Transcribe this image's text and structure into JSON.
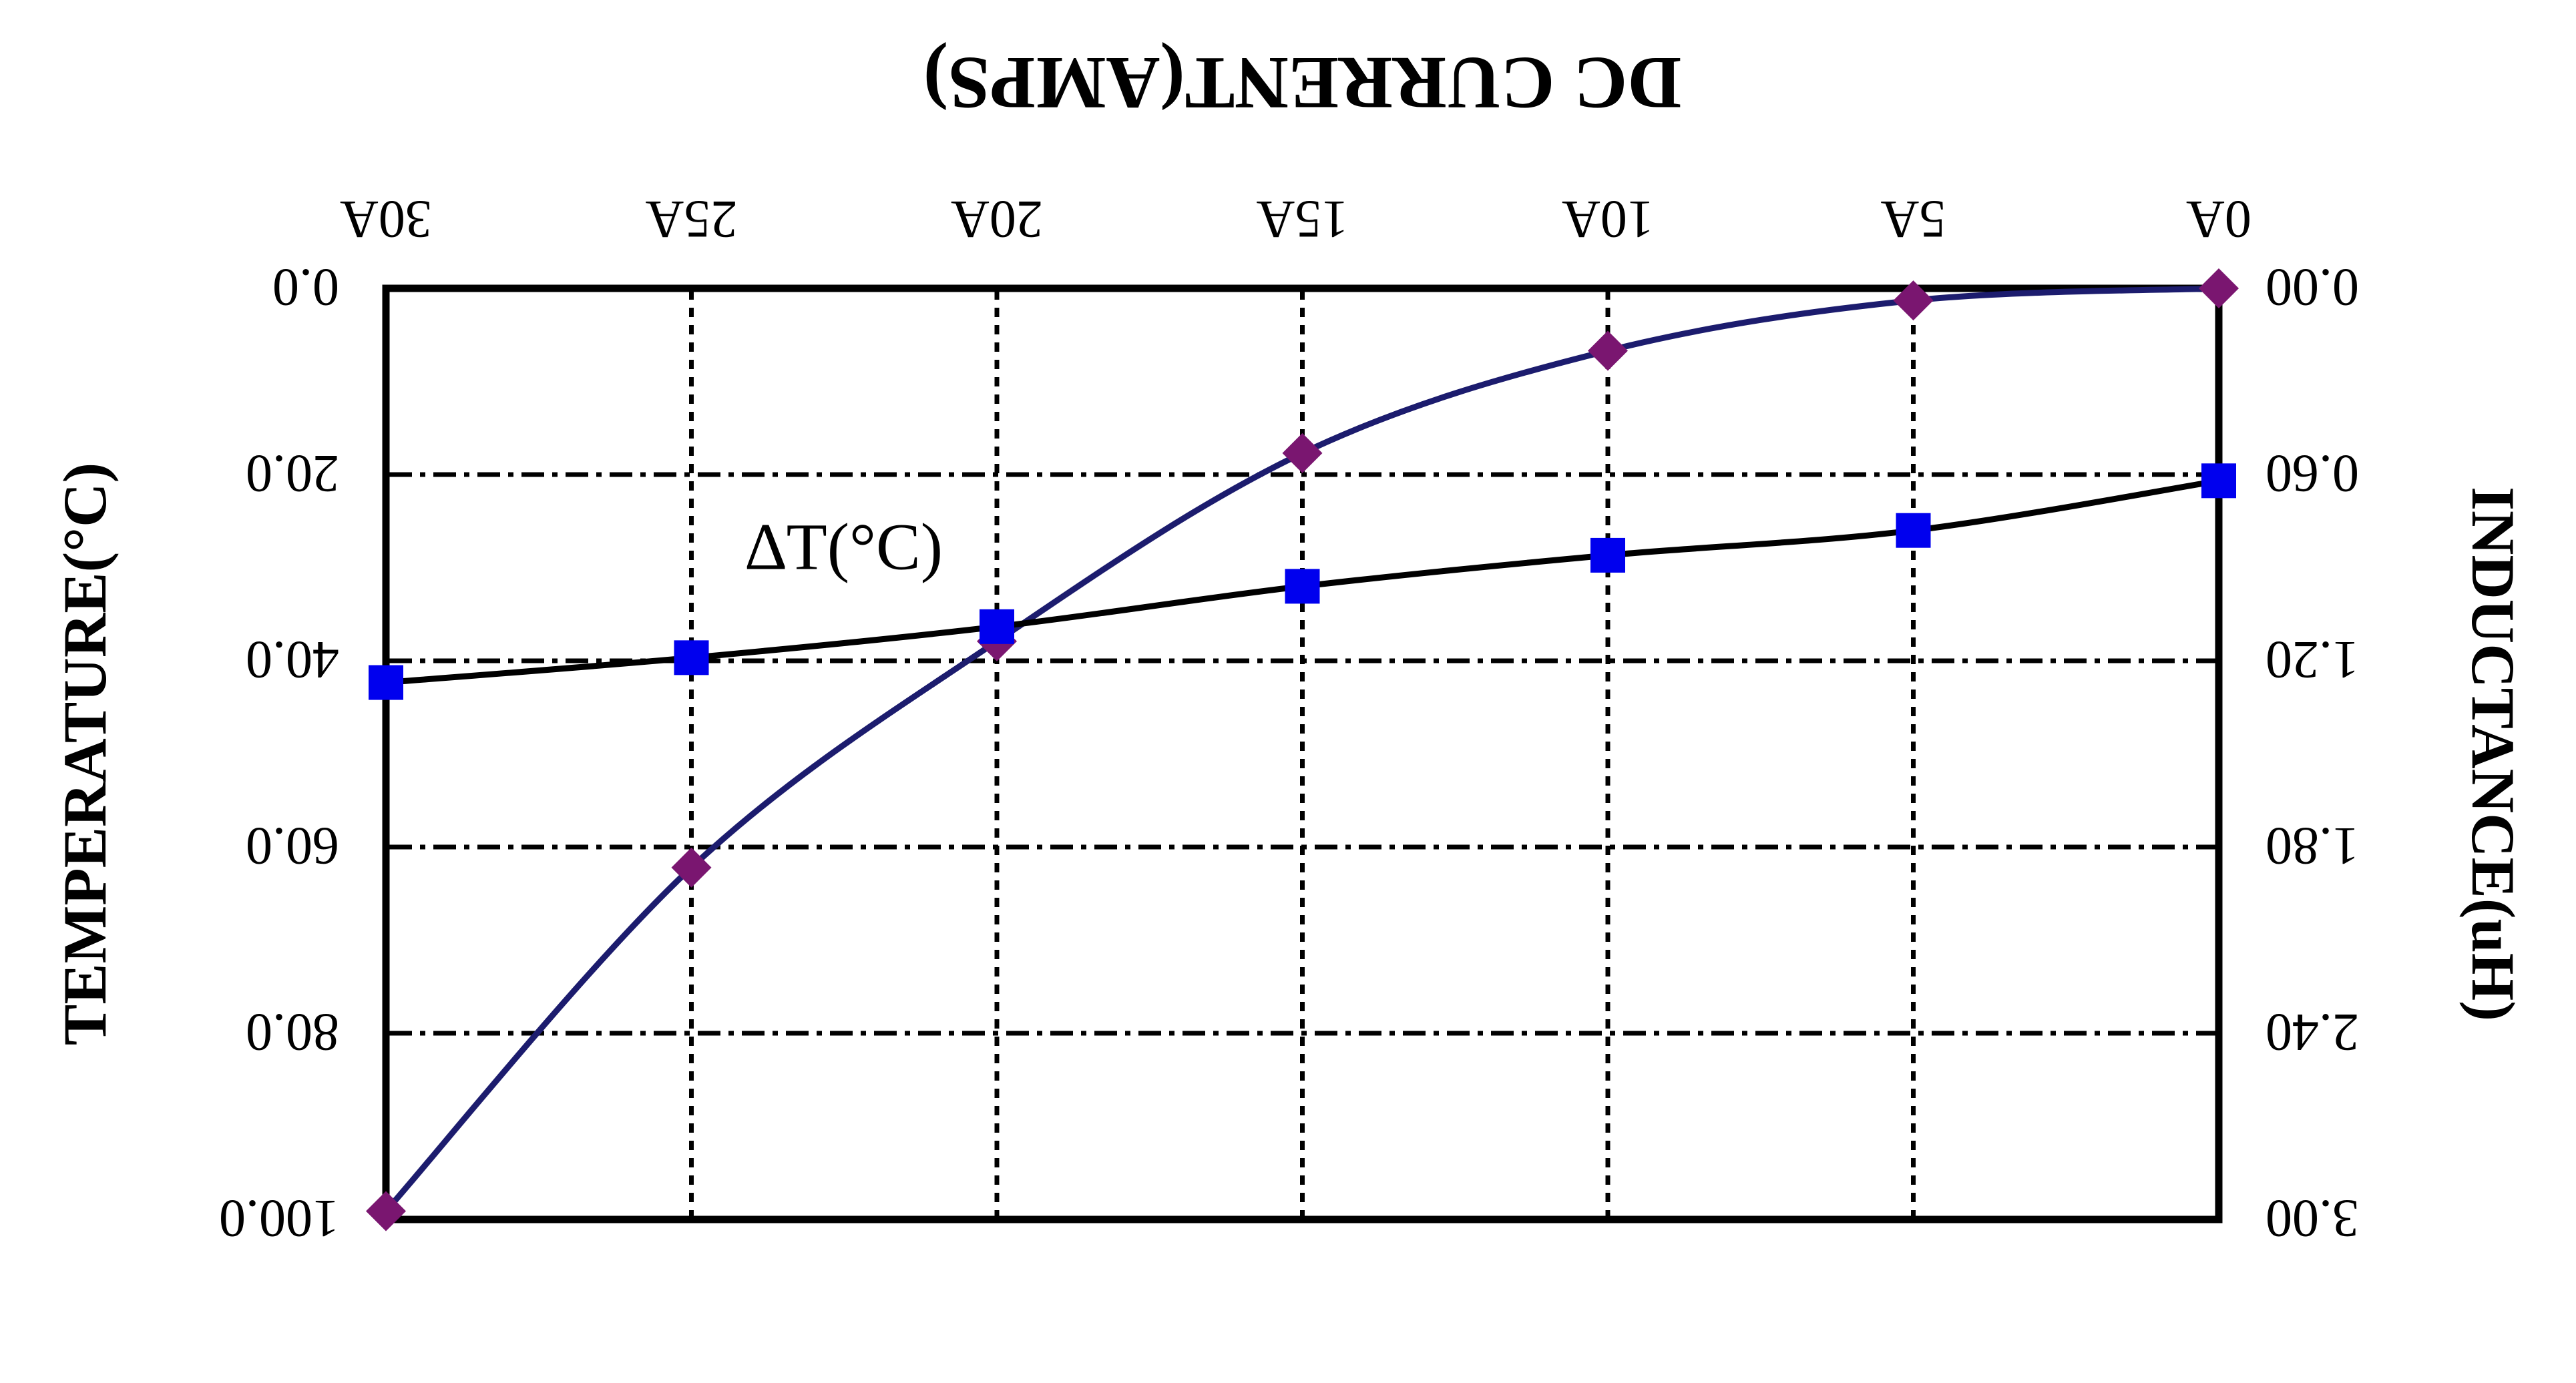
{
  "chart_data": {
    "type": "line",
    "title": "",
    "xlabel": "DC CURRENT(AMPS)",
    "ylabel_left": "INDUCTANCE(uH)",
    "ylabel_right": "TEMPERATURE(°C)",
    "x": [
      0,
      5,
      10,
      15,
      20,
      25,
      30
    ],
    "x_tick_labels": [
      "0A",
      "5A",
      "10A",
      "15A",
      "20A",
      "25A",
      "30A"
    ],
    "xlim": [
      0,
      30
    ],
    "y_left_ticks": [
      0,
      0.6,
      1.2,
      1.8,
      2.4,
      3.0
    ],
    "y_left_tick_labels": [
      "0.00",
      "0.60",
      "1.20",
      "1.80",
      "2.40",
      "3.00"
    ],
    "ylim_left": [
      0,
      3.0
    ],
    "y_right_ticks": [
      0,
      20,
      40,
      60,
      80,
      100
    ],
    "y_right_tick_labels": [
      "0.0",
      "20.0",
      "40.0",
      "60.0",
      "80.0",
      "100.0"
    ],
    "ylim_right": [
      0,
      100
    ],
    "grid": true,
    "annotations": [
      {
        "text": "∆T(°C)",
        "series": "temperature"
      }
    ],
    "series": [
      {
        "axis": "right",
        "color": "#1c1c6e",
        "marker": "diamond",
        "marker_color": "#7a1670",
        "values": [
          0.0,
          1.3,
          6.7,
          17.7,
          37.9,
          62.2,
          99.1
        ]
      },
      {
        "axis": "left",
        "color": "#000000",
        "marker": "square",
        "marker_color": "#0000ee",
        "values": [
          0.62,
          0.78,
          0.86,
          0.96,
          1.09,
          1.19,
          1.27
        ]
      }
    ]
  }
}
